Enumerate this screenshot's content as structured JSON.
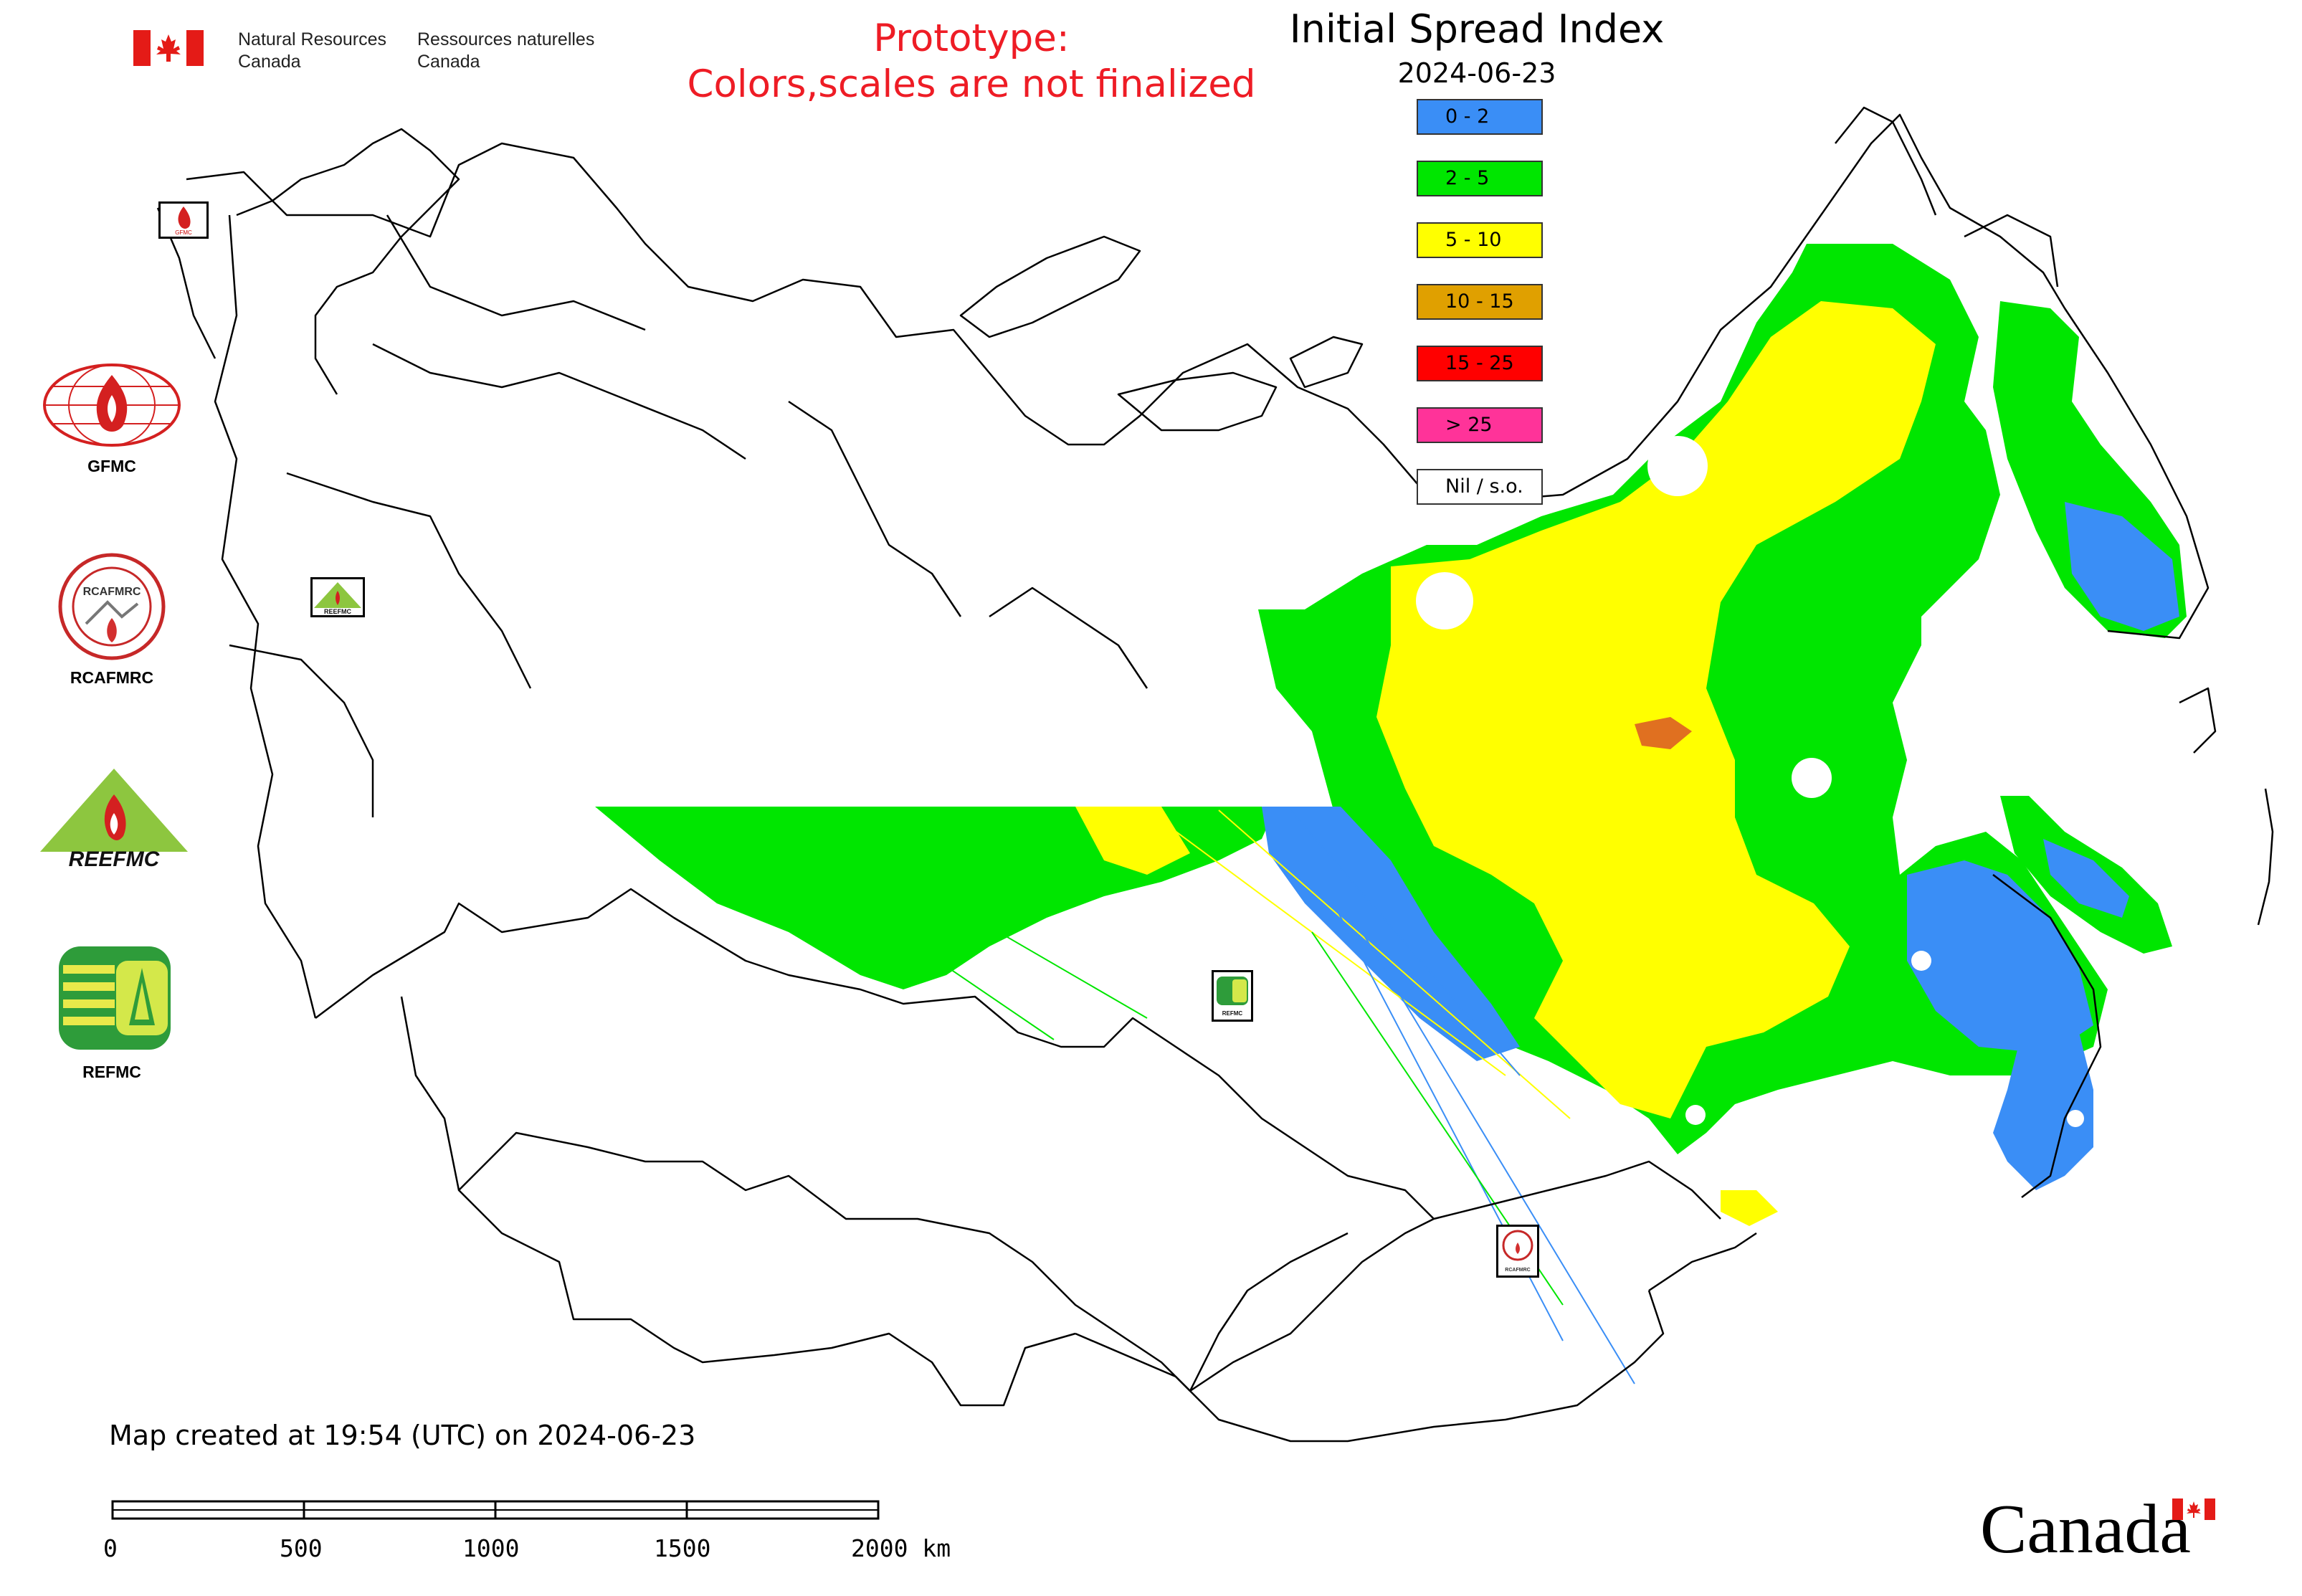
{
  "header": {
    "nrc_en_line1": "Natural Resources",
    "nrc_en_line2": "Canada",
    "nrc_fr_line1": "Ressources naturelles",
    "nrc_fr_line2": "Canada",
    "prototype_line1": "Prototype:",
    "prototype_line2": "Colors,scales are not finalized",
    "title": "Initial Spread Index",
    "date": "2024-06-23"
  },
  "legend": {
    "items": [
      {
        "label": "0 - 2",
        "color": "#3a8ef6"
      },
      {
        "label": "2 - 5",
        "color": "#00e600"
      },
      {
        "label": "5 - 10",
        "color": "#ffff00"
      },
      {
        "label": "10 - 15",
        "color": "#e0a000"
      },
      {
        "label": "15 - 25",
        "color": "#ff0000"
      },
      {
        "label": "> 25",
        "color": "#ff3399"
      },
      {
        "label": "Nil / s.o.",
        "color": "#ffffff"
      }
    ]
  },
  "logos": {
    "gfmc": "GFMC",
    "rcafmrc": "RCAFMRC",
    "reefmc": "REEFMC",
    "refmc": "REFMC",
    "rcafmrc_ring_text": "RCAFMRC",
    "small_gfmc": "GFMC",
    "small_reefmc": "REEFMC",
    "small_refmc": "REFMC",
    "small_rcafmrc": "RCAFMRC"
  },
  "footer": {
    "created": "Map created at 19:54 (UTC) on 2024-06-23",
    "scale_labels": [
      "0",
      "500",
      "1000",
      "1500",
      "2000 km"
    ],
    "wordmark": "Canada"
  }
}
